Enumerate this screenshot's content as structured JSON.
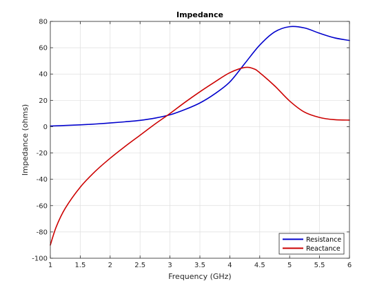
{
  "chart_data": {
    "type": "line",
    "title": "Impedance",
    "xlabel": "Frequency (GHz)",
    "ylabel": "Impedance (ohms)",
    "xlim": [
      1,
      6
    ],
    "ylim": [
      -100,
      80
    ],
    "xticks": [
      1,
      1.5,
      2,
      2.5,
      3,
      3.5,
      4,
      4.5,
      5,
      5.5,
      6
    ],
    "xtick_labels": [
      "1",
      "1.5",
      "2",
      "2.5",
      "3",
      "3.5",
      "4",
      "4.5",
      "5",
      "5.5",
      "6"
    ],
    "yticks": [
      -100,
      -80,
      -60,
      -40,
      -20,
      0,
      20,
      40,
      60,
      80
    ],
    "ytick_labels": [
      "-100",
      "-80",
      "-60",
      "-40",
      "-20",
      "0",
      "20",
      "40",
      "60",
      "80"
    ],
    "grid": true,
    "legend_position": "bottom-right",
    "series": [
      {
        "name": "Resistance",
        "color": "#0000cc",
        "x": [
          1.0,
          1.25,
          1.5,
          1.75,
          2.0,
          2.25,
          2.5,
          2.75,
          3.0,
          3.25,
          3.5,
          3.75,
          4.0,
          4.25,
          4.5,
          4.75,
          5.0,
          5.25,
          5.5,
          5.75,
          6.0
        ],
        "y": [
          0.5,
          0.9,
          1.4,
          2.0,
          2.8,
          3.7,
          4.8,
          6.5,
          9.0,
          13.0,
          18.0,
          25.0,
          34.0,
          48.0,
          62.0,
          72.0,
          76.0,
          75.0,
          71.0,
          67.5,
          65.5
        ]
      },
      {
        "name": "Reactance",
        "color": "#cc0000",
        "x": [
          1.0,
          1.1,
          1.25,
          1.5,
          1.75,
          2.0,
          2.25,
          2.5,
          2.75,
          3.0,
          3.25,
          3.5,
          3.75,
          4.0,
          4.25,
          4.4,
          4.5,
          4.75,
          5.0,
          5.25,
          5.5,
          5.75,
          6.0
        ],
        "y": [
          -90.0,
          -76.0,
          -62.0,
          -46.0,
          -34.0,
          -24.0,
          -15.0,
          -6.5,
          2.0,
          10.0,
          18.5,
          26.5,
          34.0,
          41.0,
          45.0,
          44.0,
          41.0,
          31.0,
          19.5,
          11.0,
          7.0,
          5.3,
          5.0
        ]
      }
    ]
  }
}
